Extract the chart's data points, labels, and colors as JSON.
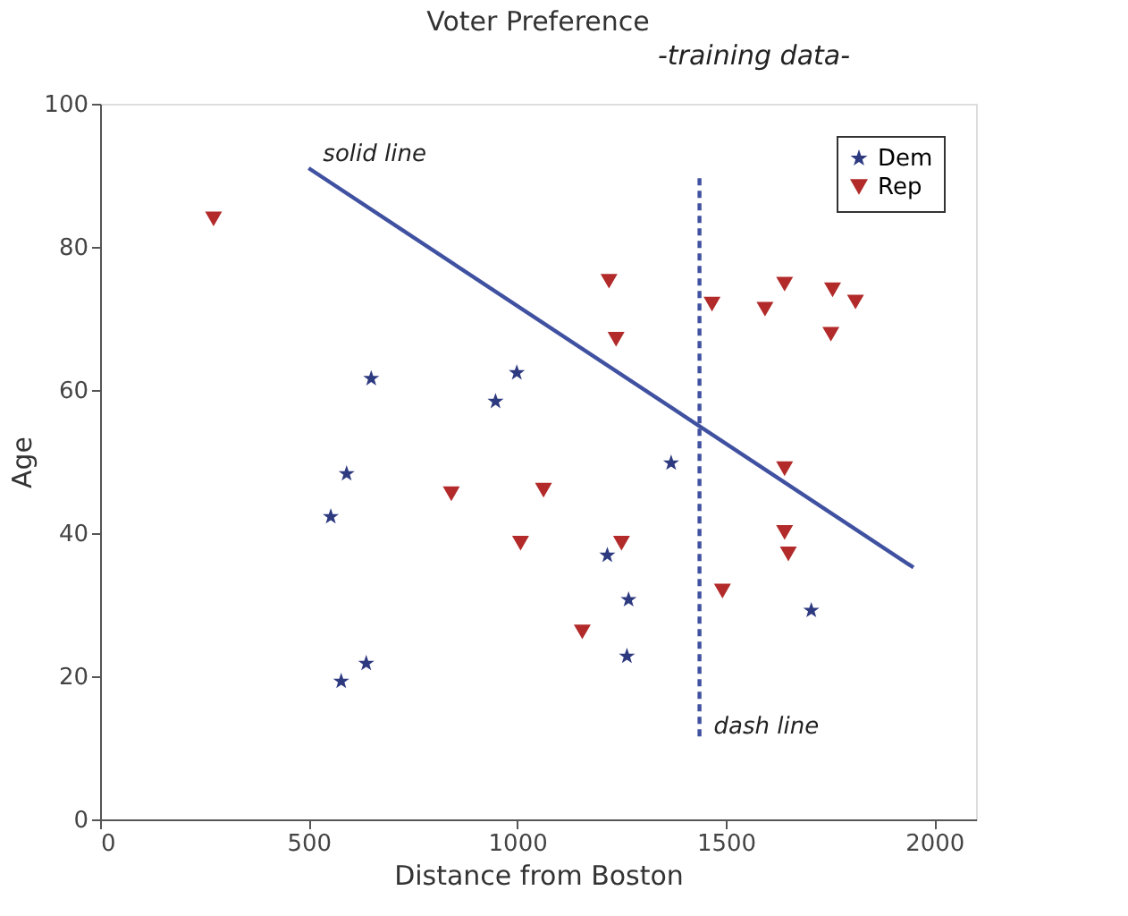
{
  "chart_data": {
    "type": "scatter",
    "title": "Voter Preference",
    "xlabel": "Distance from Boston",
    "ylabel": "Age",
    "xlim": [
      0,
      2100
    ],
    "ylim": [
      0,
      100
    ],
    "xticks": [
      0,
      500,
      1000,
      1500,
      2000
    ],
    "yticks": [
      0,
      20,
      40,
      60,
      80,
      100
    ],
    "grid": false,
    "legend": "top right",
    "series": [
      {
        "name": "Dem",
        "color": "#2e3a80",
        "marker": "star",
        "x": [
          650,
          591,
          553,
          948,
          999,
          1369,
          1216,
          1267,
          1263,
          1705,
          578,
          638
        ],
        "values": [
          61.6,
          48.3,
          42.3,
          58.4,
          62.4,
          49.8,
          36.9,
          30.7,
          22.8,
          29.2,
          19.3,
          21.8
        ]
      },
      {
        "name": "Rep",
        "color": "#b22a2a",
        "marker": "triangle",
        "x": [
          272,
          842,
          1063,
          1008,
          1250,
          1220,
          1237,
          1467,
          1594,
          1641,
          1756,
          1811,
          1752,
          1641,
          1641,
          1650,
          1492,
          1156
        ],
        "values": [
          83.9,
          45.5,
          46.0,
          38.6,
          38.6,
          75.2,
          67.1,
          72.0,
          71.3,
          74.8,
          74.0,
          72.3,
          67.8,
          49.0,
          40.1,
          37.1,
          31.9,
          26.2
        ]
      },
      {
        "type": "line",
        "color": "#3f51a0",
        "line_style": "solid",
        "x": [
          500,
          1950
        ],
        "values": [
          91,
          35.2
        ]
      },
      {
        "type": "line",
        "color": "#3f51a0",
        "line_style": "dashed",
        "x": [
          1437,
          1437
        ],
        "values": [
          89.6,
          11
        ]
      }
    ],
    "annotations": [
      "-training data-",
      {
        "text": "solid line",
        "x": 500,
        "y": 91
      },
      {
        "text": "dash line",
        "x": 1437,
        "y": 11
      }
    ]
  }
}
